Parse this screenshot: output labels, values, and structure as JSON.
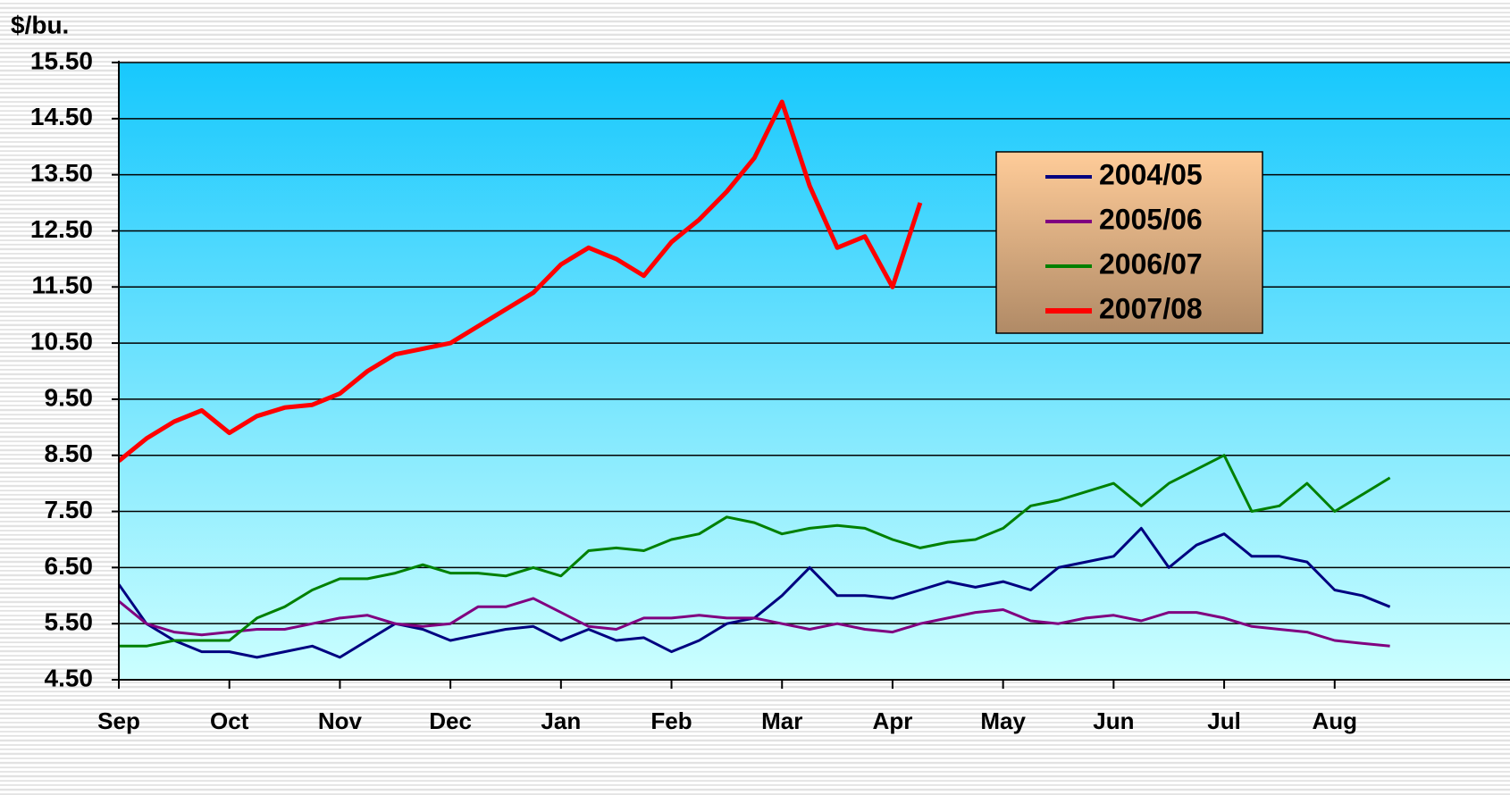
{
  "chart_data": {
    "type": "line",
    "y_label": "$/bu.",
    "xlim": [
      0,
      11.6
    ],
    "xticks": [
      {
        "value": 0,
        "label": "Sep"
      },
      {
        "value": 1,
        "label": "Oct"
      },
      {
        "value": 2,
        "label": "Nov"
      },
      {
        "value": 3,
        "label": "Dec"
      },
      {
        "value": 4,
        "label": "Jan"
      },
      {
        "value": 5,
        "label": "Feb"
      },
      {
        "value": 6,
        "label": "Mar"
      },
      {
        "value": 7,
        "label": "Apr"
      },
      {
        "value": 8,
        "label": "May"
      },
      {
        "value": 9,
        "label": "Jun"
      },
      {
        "value": 10,
        "label": "Jul"
      },
      {
        "value": 11,
        "label": "Aug"
      }
    ],
    "ylim": [
      4.5,
      15.5
    ],
    "yticks": [
      {
        "value": 4.5,
        "label": "4.50"
      },
      {
        "value": 5.5,
        "label": "5.50"
      },
      {
        "value": 6.5,
        "label": "6.50"
      },
      {
        "value": 7.5,
        "label": "7.50"
      },
      {
        "value": 8.5,
        "label": "8.50"
      },
      {
        "value": 9.5,
        "label": "9.50"
      },
      {
        "value": 10.5,
        "label": "10.50"
      },
      {
        "value": 11.5,
        "label": "11.50"
      },
      {
        "value": 12.5,
        "label": "12.50"
      },
      {
        "value": 13.5,
        "label": "13.50"
      },
      {
        "value": 14.5,
        "label": "14.50"
      },
      {
        "value": 15.5,
        "label": "15.50"
      }
    ],
    "grid": true,
    "legend": "upper right",
    "x": [
      0,
      0.25,
      0.5,
      0.75,
      1,
      1.25,
      1.5,
      1.75,
      2,
      2.25,
      2.5,
      2.75,
      3,
      3.25,
      3.5,
      3.75,
      4,
      4.25,
      4.5,
      4.75,
      5,
      5.25,
      5.5,
      5.75,
      6,
      6.25,
      6.5,
      6.75,
      7,
      7.25,
      7.5,
      7.75,
      8,
      8.25,
      8.5,
      8.75,
      9,
      9.25,
      9.5,
      9.75,
      10,
      10.25,
      10.5,
      10.75,
      11,
      11.25,
      11.5
    ],
    "series": [
      {
        "name": "2004/05",
        "color": "#000080",
        "width": 3,
        "values": [
          6.2,
          5.5,
          5.2,
          5.0,
          5.0,
          4.9,
          5.0,
          5.1,
          4.9,
          5.2,
          5.5,
          5.4,
          5.2,
          5.3,
          5.4,
          5.45,
          5.2,
          5.4,
          5.2,
          5.25,
          5.0,
          5.2,
          5.5,
          5.6,
          6.0,
          6.5,
          6.0,
          6.0,
          5.95,
          6.1,
          6.25,
          6.15,
          6.25,
          6.1,
          6.5,
          6.6,
          6.7,
          7.2,
          6.5,
          6.9,
          7.1,
          6.7,
          6.7,
          6.6,
          6.1,
          6.0,
          5.8
        ]
      },
      {
        "name": "2005/06",
        "color": "#800080",
        "width": 3,
        "values": [
          5.9,
          5.5,
          5.35,
          5.3,
          5.35,
          5.4,
          5.4,
          5.5,
          5.6,
          5.65,
          5.5,
          5.45,
          5.5,
          5.8,
          5.8,
          5.95,
          5.7,
          5.45,
          5.4,
          5.6,
          5.6,
          5.65,
          5.6,
          5.6,
          5.5,
          5.4,
          5.5,
          5.4,
          5.35,
          5.5,
          5.6,
          5.7,
          5.75,
          5.55,
          5.5,
          5.6,
          5.65,
          5.55,
          5.7,
          5.7,
          5.6,
          5.45,
          5.4,
          5.35,
          5.2,
          5.15,
          5.1
        ]
      },
      {
        "name": "2006/07",
        "color": "#008000",
        "width": 3,
        "values": [
          5.1,
          5.1,
          5.2,
          5.2,
          5.2,
          5.6,
          5.8,
          6.1,
          6.3,
          6.3,
          6.4,
          6.55,
          6.4,
          6.4,
          6.35,
          6.5,
          6.35,
          6.8,
          6.85,
          6.8,
          7.0,
          7.1,
          7.4,
          7.3,
          7.1,
          7.2,
          7.25,
          7.2,
          7.0,
          6.85,
          6.95,
          7.0,
          7.2,
          7.6,
          7.7,
          7.85,
          8.0,
          7.6,
          8.0,
          8.25,
          8.5,
          7.5,
          7.6,
          8.0,
          7.5,
          7.8,
          8.1
        ]
      },
      {
        "name": "2007/08",
        "color": "#ff0000",
        "width": 5,
        "values": [
          8.4,
          8.8,
          9.1,
          9.3,
          8.9,
          9.2,
          9.35,
          9.4,
          9.6,
          10.0,
          10.3,
          10.4,
          10.5,
          10.8,
          11.1,
          11.4,
          11.9,
          12.2,
          12.0,
          11.7,
          12.3,
          12.7,
          13.2,
          13.8,
          14.8,
          13.3,
          12.2,
          12.4,
          11.5,
          13.0,
          null,
          null,
          null,
          null,
          null,
          null,
          null,
          null,
          null,
          null,
          null,
          null,
          null,
          null,
          null,
          null,
          null
        ]
      }
    ]
  }
}
